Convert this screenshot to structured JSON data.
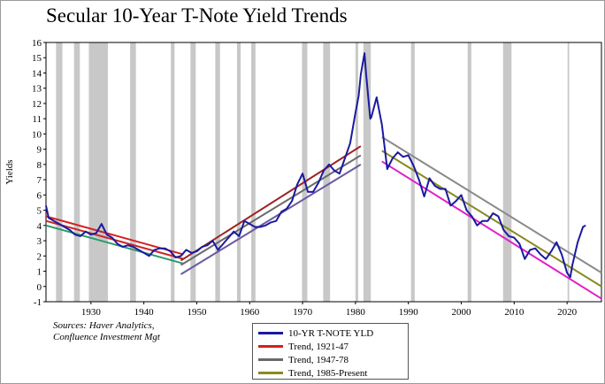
{
  "chart_data": {
    "type": "line",
    "title": "Secular 10-Year T-Note Yield Trends",
    "ylabel": "Yields",
    "xlabel": "",
    "ylim": [
      -1,
      16
    ],
    "xlim": [
      1921.5,
      2026.5
    ],
    "y_ticks": [
      -1,
      0,
      1,
      2,
      3,
      4,
      5,
      6,
      7,
      8,
      9,
      10,
      11,
      12,
      13,
      14,
      15,
      16
    ],
    "x_ticks": [
      1930,
      1940,
      1950,
      1960,
      1970,
      1980,
      1990,
      2000,
      2010,
      2020
    ],
    "recession_color": "#c8c8c8",
    "recessions": [
      [
        1923.4,
        1924.6
      ],
      [
        1926.8,
        1927.9
      ],
      [
        1929.6,
        1933.2
      ],
      [
        1937.4,
        1938.5
      ],
      [
        1945.1,
        1945.8
      ],
      [
        1948.8,
        1949.8
      ],
      [
        1953.5,
        1954.4
      ],
      [
        1957.6,
        1958.3
      ],
      [
        1960.3,
        1961.1
      ],
      [
        1969.9,
        1970.9
      ],
      [
        1973.9,
        1975.2
      ],
      [
        1980.0,
        1980.5
      ],
      [
        1981.5,
        1982.9
      ],
      [
        1990.5,
        1991.2
      ],
      [
        2001.2,
        2001.9
      ],
      [
        2007.9,
        2009.5
      ],
      [
        2020.1,
        2020.4
      ]
    ],
    "series": [
      {
        "name": "10-YR T-NOTE YLD",
        "color": "#1a1aa0",
        "points": [
          [
            1921.5,
            5.3
          ],
          [
            1922,
            4.5
          ],
          [
            1923,
            4.3
          ],
          [
            1924,
            4.1
          ],
          [
            1925,
            3.9
          ],
          [
            1926,
            3.7
          ],
          [
            1927,
            3.4
          ],
          [
            1928,
            3.3
          ],
          [
            1929,
            3.6
          ],
          [
            1930,
            3.4
          ],
          [
            1931,
            3.5
          ],
          [
            1932,
            4.1
          ],
          [
            1933,
            3.4
          ],
          [
            1934,
            3.2
          ],
          [
            1935,
            2.8
          ],
          [
            1936,
            2.6
          ],
          [
            1937,
            2.7
          ],
          [
            1938,
            2.6
          ],
          [
            1939,
            2.4
          ],
          [
            1940,
            2.2
          ],
          [
            1941,
            2.0
          ],
          [
            1942,
            2.4
          ],
          [
            1943,
            2.5
          ],
          [
            1944,
            2.5
          ],
          [
            1945,
            2.3
          ],
          [
            1946,
            1.9
          ],
          [
            1947,
            2.0
          ],
          [
            1948,
            2.4
          ],
          [
            1949,
            2.2
          ],
          [
            1950,
            2.3
          ],
          [
            1951,
            2.6
          ],
          [
            1952,
            2.7
          ],
          [
            1953,
            3.0
          ],
          [
            1954,
            2.4
          ],
          [
            1955,
            2.8
          ],
          [
            1956,
            3.2
          ],
          [
            1957,
            3.6
          ],
          [
            1958,
            3.3
          ],
          [
            1959,
            4.3
          ],
          [
            1960,
            4.1
          ],
          [
            1961,
            3.9
          ],
          [
            1962,
            3.9
          ],
          [
            1963,
            4.0
          ],
          [
            1964,
            4.2
          ],
          [
            1965,
            4.3
          ],
          [
            1966,
            4.9
          ],
          [
            1967,
            5.1
          ],
          [
            1968,
            5.6
          ],
          [
            1969,
            6.7
          ],
          [
            1970,
            7.4
          ],
          [
            1971,
            6.2
          ],
          [
            1972,
            6.2
          ],
          [
            1973,
            6.8
          ],
          [
            1974,
            7.6
          ],
          [
            1975,
            8.0
          ],
          [
            1976,
            7.6
          ],
          [
            1977,
            7.4
          ],
          [
            1978,
            8.4
          ],
          [
            1979,
            9.4
          ],
          [
            1980,
            11.4
          ],
          [
            1980.6,
            12.5
          ],
          [
            1981,
            13.9
          ],
          [
            1981.7,
            15.3
          ],
          [
            1982,
            14.0
          ],
          [
            1982.8,
            11.0
          ],
          [
            1983,
            11.1
          ],
          [
            1984,
            12.4
          ],
          [
            1985,
            10.6
          ],
          [
            1986,
            7.7
          ],
          [
            1987,
            8.4
          ],
          [
            1988,
            8.8
          ],
          [
            1989,
            8.5
          ],
          [
            1990,
            8.6
          ],
          [
            1991,
            7.9
          ],
          [
            1992,
            7.0
          ],
          [
            1993,
            5.9
          ],
          [
            1994,
            7.1
          ],
          [
            1995,
            6.6
          ],
          [
            1996,
            6.4
          ],
          [
            1997,
            6.4
          ],
          [
            1998,
            5.3
          ],
          [
            1999,
            5.6
          ],
          [
            2000,
            6.0
          ],
          [
            2001,
            5.0
          ],
          [
            2002,
            4.6
          ],
          [
            2003,
            4.0
          ],
          [
            2004,
            4.3
          ],
          [
            2005,
            4.3
          ],
          [
            2006,
            4.8
          ],
          [
            2007,
            4.6
          ],
          [
            2008,
            3.7
          ],
          [
            2009,
            3.3
          ],
          [
            2010,
            3.2
          ],
          [
            2011,
            2.8
          ],
          [
            2012,
            1.8
          ],
          [
            2013,
            2.4
          ],
          [
            2014,
            2.5
          ],
          [
            2015,
            2.1
          ],
          [
            2016,
            1.8
          ],
          [
            2017,
            2.3
          ],
          [
            2018,
            2.9
          ],
          [
            2019,
            2.1
          ],
          [
            2020,
            0.9
          ],
          [
            2020.6,
            0.6
          ],
          [
            2021,
            1.4
          ],
          [
            2022,
            2.9
          ],
          [
            2023,
            3.9
          ],
          [
            2023.5,
            4.0
          ]
        ]
      },
      {
        "name": "Trend, 1921-47",
        "color": "#d42020",
        "lines": [
          [
            [
              1921.5,
              4.6
            ],
            [
              1947.5,
              2.1
            ]
          ],
          [
            [
              1921.5,
              4.3
            ],
            [
              1947.5,
              1.8
            ]
          ],
          [
            [
              1921.5,
              4.0
            ],
            [
              1947.5,
              1.5
            ]
          ]
        ]
      },
      {
        "name": "Trend, 1947-78",
        "color": "#6a6a6a",
        "lines": [
          [
            [
              1947,
              1.7
            ],
            [
              1981,
              9.2
            ]
          ],
          [
            [
              1947,
              1.4
            ],
            [
              1981,
              8.6
            ]
          ],
          [
            [
              1947,
              0.8
            ],
            [
              1981,
              8.0
            ]
          ]
        ]
      },
      {
        "name": "Trend, 1985-Present",
        "color": "#8a8a20",
        "lines": [
          [
            [
              1985,
              9.8
            ],
            [
              2026.5,
              0.9
            ]
          ],
          [
            [
              1985,
              8.9
            ],
            [
              2026.5,
              0.0
            ]
          ],
          [
            [
              1985,
              8.2
            ],
            [
              2026.5,
              -0.8
            ]
          ]
        ]
      }
    ],
    "trend_line_colors": {
      "t1921": [
        "#d42020",
        "#c82828",
        "#2a9a6a"
      ],
      "t1947": [
        "#a02020",
        "#6a6a6a",
        "#6a5aa0"
      ],
      "t1985": [
        "#8a8a8a",
        "#8a8a20",
        "#e020c8"
      ]
    }
  },
  "sources": {
    "line1": "Sources:  Haver Analytics,",
    "line2": "Confluence Investment Mgt"
  }
}
